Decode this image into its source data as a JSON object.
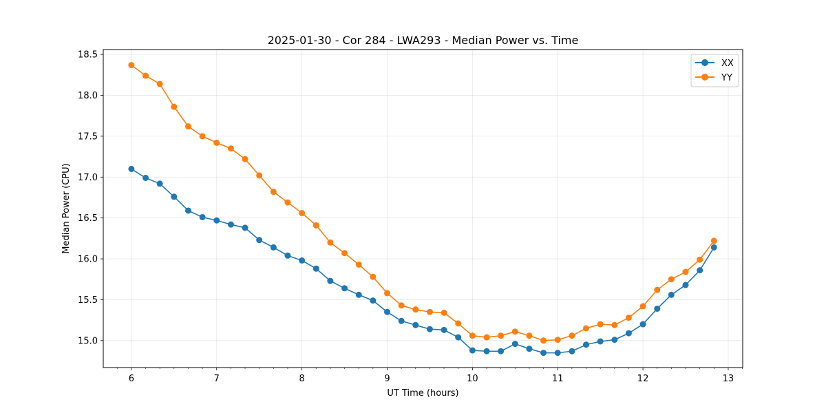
{
  "chart_data": {
    "type": "line",
    "title": "2025-01-30 - Cor 284 - LWA293 - Median Power vs. Time",
    "xlabel": "UT Time (hours)",
    "ylabel": "Median Power (CPU)",
    "xlim": [
      5.67,
      13.17
    ],
    "ylim": [
      14.67,
      18.56
    ],
    "xticks": [
      6,
      7,
      8,
      9,
      10,
      11,
      12,
      13
    ],
    "yticks": [
      15.0,
      15.5,
      16.0,
      16.5,
      17.0,
      17.5,
      18.0,
      18.5
    ],
    "xtick_labels": [
      "6",
      "7",
      "8",
      "9",
      "10",
      "11",
      "12",
      "13"
    ],
    "ytick_labels": [
      "15.0",
      "15.5",
      "16.0",
      "16.5",
      "17.0",
      "17.5",
      "18.0",
      "18.5"
    ],
    "grid": true,
    "legend_location": "top-right",
    "x": [
      6.0,
      6.167,
      6.333,
      6.5,
      6.667,
      6.833,
      7.0,
      7.167,
      7.333,
      7.5,
      7.667,
      7.833,
      8.0,
      8.167,
      8.333,
      8.5,
      8.667,
      8.833,
      9.0,
      9.167,
      9.333,
      9.5,
      9.667,
      9.833,
      10.0,
      10.167,
      10.333,
      10.5,
      10.667,
      10.833,
      11.0,
      11.167,
      11.333,
      11.5,
      11.667,
      11.833,
      12.0,
      12.167,
      12.333,
      12.5,
      12.667,
      12.833
    ],
    "series": [
      {
        "name": "XX",
        "color": "#1f77b4",
        "values": [
          17.1,
          16.99,
          16.92,
          16.76,
          16.59,
          16.51,
          16.47,
          16.42,
          16.38,
          16.23,
          16.14,
          16.04,
          15.98,
          15.88,
          15.73,
          15.64,
          15.56,
          15.49,
          15.35,
          15.24,
          15.19,
          15.14,
          15.13,
          15.04,
          14.88,
          14.87,
          14.87,
          14.96,
          14.9,
          14.85,
          14.85,
          14.87,
          14.95,
          14.99,
          15.01,
          15.09,
          15.2,
          15.39,
          15.56,
          15.68,
          15.86,
          16.14
        ]
      },
      {
        "name": "YY",
        "color": "#ff7f0e",
        "values": [
          18.37,
          18.24,
          18.14,
          17.86,
          17.62,
          17.5,
          17.42,
          17.35,
          17.22,
          17.02,
          16.82,
          16.69,
          16.56,
          16.41,
          16.2,
          16.07,
          15.93,
          15.78,
          15.58,
          15.43,
          15.38,
          15.35,
          15.34,
          15.21,
          15.06,
          15.04,
          15.06,
          15.11,
          15.06,
          15.0,
          15.01,
          15.06,
          15.15,
          15.2,
          15.19,
          15.28,
          15.42,
          15.62,
          15.75,
          15.84,
          15.99,
          16.22
        ]
      }
    ]
  }
}
